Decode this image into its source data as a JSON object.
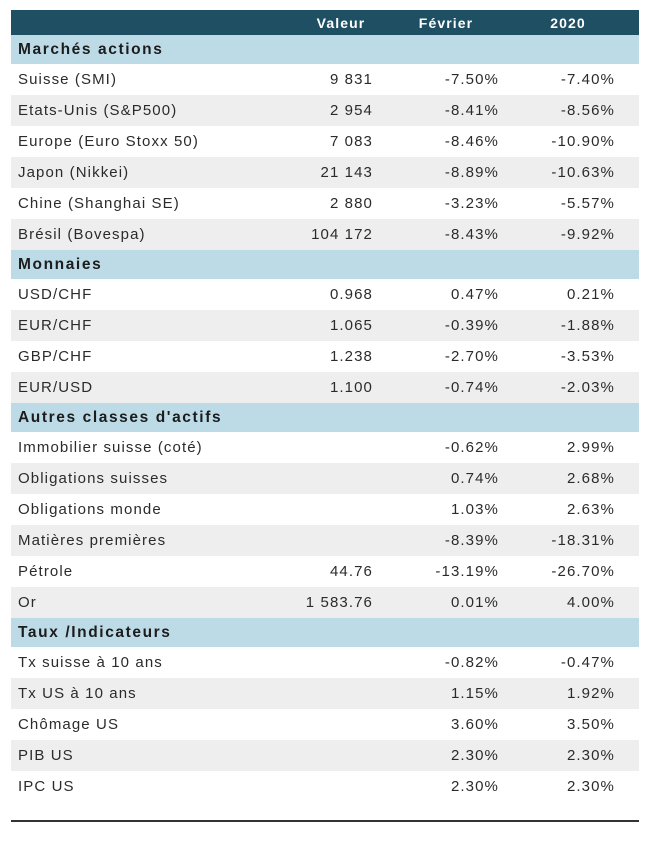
{
  "header": {
    "col_name": "",
    "col_value": "Valeur",
    "col_month": "Février",
    "col_ytd": "2020"
  },
  "sections": [
    {
      "title": "Marchés actions",
      "rows": [
        {
          "name": "Suisse (SMI)",
          "value": "9 831",
          "month": "-7.50%",
          "ytd": "-7.40%"
        },
        {
          "name": "Etats-Unis (S&P500)",
          "value": "2 954",
          "month": "-8.41%",
          "ytd": "-8.56%"
        },
        {
          "name": "Europe (Euro Stoxx 50)",
          "value": "7 083",
          "month": "-8.46%",
          "ytd": "-10.90%"
        },
        {
          "name": "Japon (Nikkei)",
          "value": "21 143",
          "month": "-8.89%",
          "ytd": "-10.63%"
        },
        {
          "name": "Chine (Shanghai SE)",
          "value": "2 880",
          "month": "-3.23%",
          "ytd": "-5.57%"
        },
        {
          "name": "Brésil (Bovespa)",
          "value": "104 172",
          "month": "-8.43%",
          "ytd": "-9.92%"
        }
      ]
    },
    {
      "title": "Monnaies",
      "rows": [
        {
          "name": "USD/CHF",
          "value": "0.968",
          "month": "0.47%",
          "ytd": "0.21%"
        },
        {
          "name": "EUR/CHF",
          "value": "1.065",
          "month": "-0.39%",
          "ytd": "-1.88%"
        },
        {
          "name": "GBP/CHF",
          "value": "1.238",
          "month": "-2.70%",
          "ytd": "-3.53%"
        },
        {
          "name": "EUR/USD",
          "value": "1.100",
          "month": "-0.74%",
          "ytd": "-2.03%"
        }
      ]
    },
    {
      "title": "Autres classes d'actifs",
      "rows": [
        {
          "name": "Immobilier suisse (coté)",
          "value": "",
          "month": "-0.62%",
          "ytd": "2.99%"
        },
        {
          "name": "Obligations suisses",
          "value": "",
          "month": "0.74%",
          "ytd": "2.68%"
        },
        {
          "name": "Obligations monde",
          "value": "",
          "month": "1.03%",
          "ytd": "2.63%"
        },
        {
          "name": "Matières premières",
          "value": "",
          "month": "-8.39%",
          "ytd": "-18.31%"
        },
        {
          "name": "Pétrole",
          "value": "44.76",
          "month": "-13.19%",
          "ytd": "-26.70%"
        },
        {
          "name": "Or",
          "value": "1 583.76",
          "month": "0.01%",
          "ytd": "4.00%"
        }
      ]
    },
    {
      "title": "Taux /Indicateurs",
      "rows": [
        {
          "name": "Tx suisse à 10 ans",
          "value": "",
          "month": "-0.82%",
          "ytd": "-0.47%"
        },
        {
          "name": "Tx US à 10 ans",
          "value": "",
          "month": "1.15%",
          "ytd": "1.92%"
        },
        {
          "name": "Chômage US",
          "value": "",
          "month": "3.60%",
          "ytd": "3.50%"
        },
        {
          "name": "PIB US",
          "value": "",
          "month": "2.30%",
          "ytd": "2.30%"
        },
        {
          "name": "IPC US",
          "value": "",
          "month": "2.30%",
          "ytd": "2.30%"
        }
      ]
    }
  ],
  "colors": {
    "header_bg": "#1e4f63",
    "section_bg": "#bcdbe7",
    "shaded_row": "#eeeeee"
  }
}
